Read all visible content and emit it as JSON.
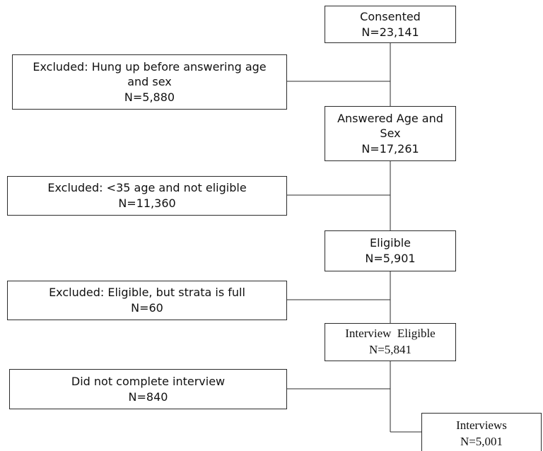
{
  "nodes": {
    "consented": {
      "line1": "Consented",
      "line2": "N=23,141"
    },
    "excluded_hung_up": {
      "line1": "Excluded: Hung up before answering age",
      "line2": "and sex",
      "line3": "N=5,880"
    },
    "answered_age_sex": {
      "line1": "Answered Age and",
      "line2": "Sex",
      "line3": "N=17,261"
    },
    "excluded_under_35": {
      "line1": "Excluded: <35 age and not eligible",
      "line2": "N=11,360"
    },
    "eligible": {
      "line1": "Eligible",
      "line2": "N=5,901"
    },
    "excluded_strata_full": {
      "line1": "Excluded: Eligible, but strata is full",
      "line2": "N=60"
    },
    "interview_eligible": {
      "line1": "Interview  Eligible",
      "line2": "N=5,841"
    },
    "did_not_complete": {
      "line1": "Did not complete interview",
      "line2": "N=840"
    },
    "interviews": {
      "line1": "Interviews",
      "line2": "N=5,001"
    }
  }
}
